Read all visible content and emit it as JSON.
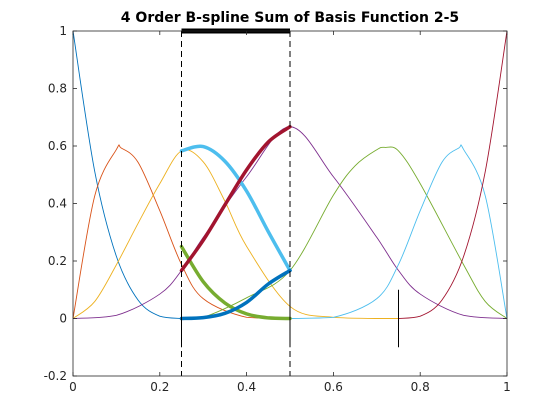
{
  "chart_data": {
    "type": "line",
    "title": "4 Order B-spline Sum of Basis Function 2-5",
    "xlabel": "",
    "ylabel": "",
    "xlim": [
      0,
      1
    ],
    "ylim": [
      -0.2,
      1
    ],
    "x_ticks": [
      "0",
      "0.2",
      "0.4",
      "0.6",
      "0.8",
      "1"
    ],
    "y_ticks": [
      "-0.2",
      "0",
      "0.2",
      "0.4",
      "0.6",
      "0.8",
      "1"
    ],
    "grid": false,
    "legend": "none",
    "spline_order": 4,
    "knots": [
      0,
      0,
      0,
      0,
      0.25,
      0.5,
      0.75,
      1,
      1,
      1,
      1
    ],
    "highlight_interval": [
      0.25,
      0.5
    ],
    "dashed_lines_x": [
      0.25,
      0.5
    ],
    "knot_markers": [
      {
        "x": 0.25,
        "y_range": [
          -0.1,
          0.1
        ]
      },
      {
        "x": 0.5,
        "y_range": [
          -0.1,
          0.1
        ]
      },
      {
        "x": 0.75,
        "y_range": [
          -0.1,
          0.1
        ]
      }
    ],
    "series": [
      {
        "index": 1,
        "color": "#0072BD",
        "x": [
          0,
          0.05,
          0.1,
          0.15,
          0.2,
          0.25
        ],
        "values": [
          1,
          0.512,
          0.216,
          0.064,
          0.008,
          0
        ]
      },
      {
        "index": 2,
        "color": "#D95319",
        "x": [
          0,
          0.05,
          0.1,
          0.111,
          0.15,
          0.2,
          0.25,
          0.3,
          0.4,
          0.5
        ],
        "values": [
          0,
          0.426,
          0.588,
          0.593,
          0.543,
          0.375,
          0.188,
          0.069,
          0.004,
          0
        ]
      },
      {
        "index": 3,
        "color": "#EDB120",
        "x": [
          0,
          0.05,
          0.1,
          0.15,
          0.2,
          0.25,
          0.3,
          0.35,
          0.4,
          0.5,
          0.6,
          0.7,
          0.75
        ],
        "values": [
          0,
          0.059,
          0.187,
          0.331,
          0.469,
          0.583,
          0.545,
          0.408,
          0.251,
          0.042,
          0.004,
          0,
          0
        ]
      },
      {
        "index": 4,
        "color": "#7E2F8E",
        "x": [
          0,
          0.1,
          0.2,
          0.25,
          0.3,
          0.4,
          0.5,
          0.6,
          0.7,
          0.75,
          0.8,
          0.9,
          1
        ],
        "values": [
          0,
          0.011,
          0.085,
          0.167,
          0.282,
          0.493,
          0.667,
          0.493,
          0.282,
          0.167,
          0.085,
          0.011,
          0
        ]
      },
      {
        "index": 5,
        "color": "#77AC30",
        "x": [
          0.25,
          0.3,
          0.4,
          0.5,
          0.6,
          0.65,
          0.7,
          0.72,
          0.75,
          0.8,
          0.9,
          0.95,
          1
        ],
        "values": [
          0,
          0.004,
          0.072,
          0.167,
          0.429,
          0.531,
          0.587,
          0.595,
          0.583,
          0.469,
          0.187,
          0.059,
          0
        ]
      },
      {
        "index": 6,
        "color": "#4DBEEE",
        "x": [
          0.5,
          0.6,
          0.7,
          0.75,
          0.8,
          0.85,
          0.889,
          0.9,
          0.95,
          1
        ],
        "values": [
          0,
          0.004,
          0.069,
          0.188,
          0.375,
          0.543,
          0.593,
          0.588,
          0.426,
          0
        ]
      },
      {
        "index": 7,
        "color": "#A2142F",
        "x": [
          0.75,
          0.8,
          0.85,
          0.9,
          0.95,
          1
        ],
        "values": [
          0,
          0.008,
          0.064,
          0.216,
          0.512,
          1
        ]
      }
    ],
    "highlight_series": [
      {
        "index": 2,
        "color": "#77AC30",
        "x": [
          0.25,
          0.3,
          0.35,
          0.4,
          0.45,
          0.5
        ],
        "values": [
          0.25,
          0.128,
          0.054,
          0.016,
          0.002,
          0
        ]
      },
      {
        "index": 3,
        "color": "#4DBEEE",
        "x": [
          0.25,
          0.3,
          0.35,
          0.4,
          0.45,
          0.5
        ],
        "values": [
          0.583,
          0.598,
          0.547,
          0.443,
          0.302,
          0.167
        ]
      },
      {
        "index": 4,
        "color": "#A2142F",
        "x": [
          0.25,
          0.3,
          0.35,
          0.4,
          0.45,
          0.5
        ],
        "values": [
          0.167,
          0.272,
          0.395,
          0.517,
          0.614,
          0.667
        ]
      },
      {
        "index": 5,
        "color": "#0072BD",
        "x": [
          0.25,
          0.3,
          0.35,
          0.4,
          0.45,
          0.5
        ],
        "values": [
          0,
          0.003,
          0.018,
          0.056,
          0.12,
          0.167
        ]
      }
    ]
  }
}
